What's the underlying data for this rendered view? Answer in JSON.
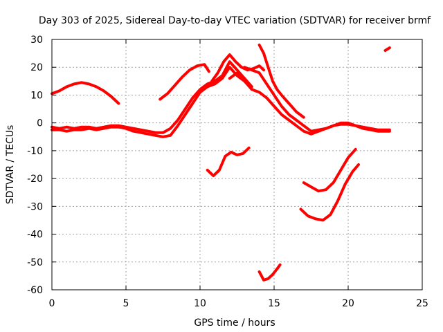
{
  "chart_data": {
    "type": "line",
    "title": "Day 303 of 2025, Sidereal Day-to-day VTEC variation (SDTVAR) for receiver brmf",
    "xlabel": "GPS time / hours",
    "ylabel": "SDTVAR / TECUs",
    "xlim": [
      0,
      25
    ],
    "ylim": [
      -60,
      30
    ],
    "xticks": [
      0,
      5,
      10,
      15,
      20,
      25
    ],
    "yticks": [
      -60,
      -50,
      -40,
      -30,
      -20,
      -10,
      0,
      10,
      20,
      30
    ],
    "grid": true,
    "color": "#ff0000",
    "series": [
      {
        "name": "arc-main-1",
        "x": [
          0.0,
          0.5,
          1.0,
          1.5,
          2.0,
          2.5,
          3.0,
          3.5,
          4.0,
          4.5,
          5.0,
          5.5,
          6.0,
          6.5,
          7.0,
          7.5,
          8.0,
          8.5,
          9.0,
          9.5,
          10.0,
          10.5,
          11.0,
          11.5,
          12.0,
          12.5,
          13.0,
          13.5
        ],
        "y": [
          -1.5,
          -2,
          -1.5,
          -2,
          -1.5,
          -1.5,
          -2,
          -1.5,
          -1,
          -1,
          -1.5,
          -2,
          -2.5,
          -3,
          -3.5,
          -3.5,
          -2,
          1,
          5,
          9,
          12,
          14,
          15,
          17,
          22,
          19,
          16,
          13
        ]
      },
      {
        "name": "arc-main-2",
        "x": [
          0.0,
          0.5,
          1.0,
          1.5,
          2.0,
          2.5,
          3.0,
          3.5,
          4.0,
          4.5,
          5.0,
          5.5,
          6.0,
          6.5,
          7.0,
          7.5,
          8.0,
          8.5,
          9.0,
          9.5,
          10.0,
          10.5,
          11.0,
          11.5,
          12.0,
          12.5,
          13.0
        ],
        "y": [
          -2.5,
          -2.5,
          -3,
          -2.5,
          -2.5,
          -2,
          -2.5,
          -2,
          -1.5,
          -1.5,
          -2,
          -3,
          -3.5,
          -4,
          -4.5,
          -5,
          -4.5,
          -1,
          3,
          7,
          11,
          13,
          14,
          16,
          20,
          17,
          15
        ]
      },
      {
        "name": "arc-main-3",
        "x": [
          12.0,
          12.5,
          13.0,
          13.5,
          14.0,
          14.5,
          15.0,
          15.5,
          16.0,
          16.5,
          17.0,
          17.5,
          18.0,
          18.5,
          19.0,
          19.5,
          20.0,
          20.5,
          21.0,
          21.5,
          22.0,
          22.5,
          22.8
        ],
        "y": [
          16,
          18,
          15,
          12,
          11,
          9,
          6,
          3,
          1,
          -1,
          -3,
          -4,
          -3,
          -2,
          -1,
          0,
          0,
          -1,
          -1.5,
          -2,
          -2.5,
          -2.5,
          -2.5
        ]
      },
      {
        "name": "arc-main-4",
        "x": [
          13.0,
          13.5,
          14.0,
          14.5,
          15.0,
          15.5,
          16.0,
          16.5,
          17.0,
          17.5,
          18.0,
          18.5,
          19.0,
          19.5,
          20.0,
          20.5,
          21.0,
          21.5,
          22.0,
          22.5,
          22.8
        ],
        "y": [
          20,
          19,
          18,
          14,
          10,
          6,
          3,
          1,
          -1,
          -3,
          -2.5,
          -2,
          -1,
          -0.5,
          -0.5,
          -1,
          -2,
          -2.5,
          -3,
          -3,
          -3
        ]
      },
      {
        "name": "arc-early-high",
        "x": [
          0.0,
          0.5,
          1.0,
          1.5,
          2.0,
          2.5,
          3.0,
          3.5,
          4.0,
          4.5
        ],
        "y": [
          10.5,
          11.5,
          13,
          14,
          14.5,
          14,
          13,
          11.5,
          9.5,
          7
        ]
      },
      {
        "name": "arc-noon-high",
        "x": [
          7.3,
          7.8,
          8.3,
          8.8,
          9.3,
          9.8,
          10.3,
          10.6
        ],
        "y": [
          8.5,
          10.5,
          13.5,
          16.5,
          19,
          20.5,
          21,
          18.5
        ]
      },
      {
        "name": "arc-peak",
        "x": [
          10.8,
          11.2,
          11.6,
          12.0,
          12.4,
          12.8,
          13.2,
          13.6,
          14.0,
          14.3
        ],
        "y": [
          15,
          18,
          22,
          24.5,
          22,
          20,
          19,
          19.5,
          20.5,
          19
        ]
      },
      {
        "name": "arc-steep-drop",
        "x": [
          14.0,
          14.3,
          14.6,
          14.9,
          15.2,
          15.5,
          16.0,
          16.5,
          17.0
        ],
        "y": [
          28,
          25,
          20,
          15,
          12,
          10,
          7,
          4,
          2
        ]
      },
      {
        "name": "arc-neg-mid",
        "x": [
          10.5,
          10.9,
          11.3,
          11.7,
          12.1,
          12.5,
          12.9,
          13.3
        ],
        "y": [
          -17,
          -19,
          -17,
          -12,
          -10.5,
          -11.5,
          -11,
          -9
        ]
      },
      {
        "name": "arc-neg-deep",
        "x": [
          14.0,
          14.3,
          14.6,
          14.9,
          15.2,
          15.4
        ],
        "y": [
          -53.5,
          -56.5,
          -56,
          -54.5,
          -52.5,
          -51
        ]
      },
      {
        "name": "arc-neg-late-1",
        "x": [
          16.8,
          17.3,
          17.8,
          18.3,
          18.8,
          19.3,
          19.8,
          20.3,
          20.7
        ],
        "y": [
          -31,
          -33.5,
          -34.5,
          -35,
          -33,
          -28,
          -22,
          -17.5,
          -15
        ]
      },
      {
        "name": "arc-neg-late-2",
        "x": [
          17.0,
          17.5,
          18.0,
          18.5,
          19.0,
          19.5,
          20.0,
          20.5
        ],
        "y": [
          -21.5,
          -23,
          -24.5,
          -24,
          -21.5,
          -17,
          -12.5,
          -9.5
        ]
      },
      {
        "name": "arc-late-high",
        "x": [
          22.5,
          22.8
        ],
        "y": [
          26,
          27
        ]
      }
    ]
  }
}
